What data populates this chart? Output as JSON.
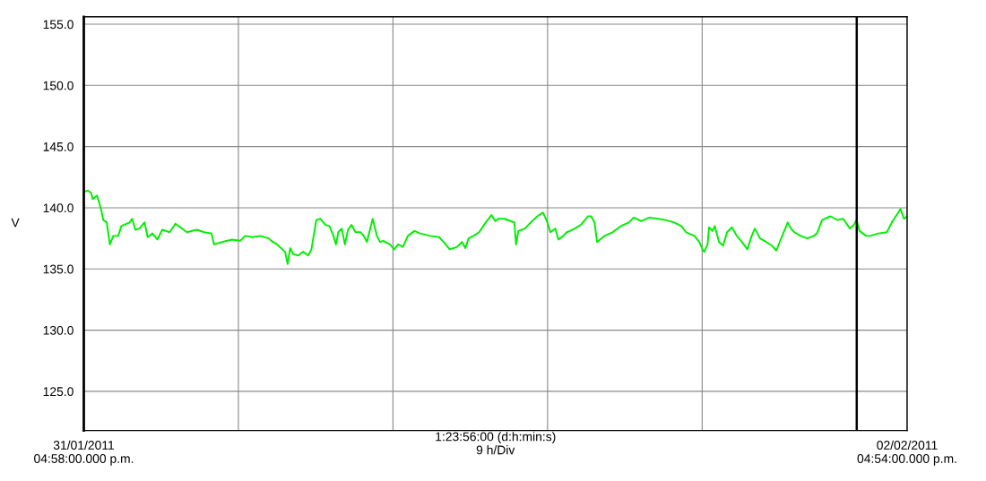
{
  "chart_data": {
    "type": "line",
    "ylabel": "V",
    "xlabel": "1:23:56:00 (d:h:min:s)\n9 h/Div",
    "xlim": [
      "2011-01-31T16:58",
      "2011-02-02T16:54"
    ],
    "ylim": [
      121.8,
      155.6
    ],
    "xticks": [
      {
        "value": "2011-01-31T16:58",
        "label": "31/01/2011\n04:58:00.000 p.m."
      },
      {
        "value": "2011-02-01T01:58",
        "label": null
      },
      {
        "value": "2011-02-01T10:58",
        "label": null
      },
      {
        "value": "2011-02-01T19:58",
        "label": null
      },
      {
        "value": "2011-02-02T04:58",
        "label": null
      },
      {
        "value": "2011-02-02T13:58",
        "label": null
      },
      {
        "value": "2011-02-02T16:54",
        "label": "02/02/2011\n04:54:00.000 p.m."
      }
    ],
    "yticks": [
      {
        "value": 125,
        "label": "125.0"
      },
      {
        "value": 130,
        "label": "130.0"
      },
      {
        "value": 135,
        "label": "135.0"
      },
      {
        "value": 140,
        "label": "140.0"
      },
      {
        "value": 145,
        "label": "145.0"
      },
      {
        "value": 150,
        "label": "150.0"
      },
      {
        "value": 155,
        "label": "155.0"
      }
    ],
    "grid": true,
    "ref_lines": [
      {
        "axis": "x",
        "value": "2011-02-02T13:58",
        "color": "#000000"
      }
    ],
    "series": [
      {
        "color": "#00ee00",
        "x": [
          "2011-01-31T16:58",
          "2011-01-31T17:12",
          "2011-01-31T17:24",
          "2011-01-31T17:29",
          "2011-01-31T17:44",
          "2011-01-31T17:58",
          "2011-01-31T18:06",
          "2011-01-31T18:18",
          "2011-01-31T18:29",
          "2011-01-31T18:41",
          "2011-01-31T18:58",
          "2011-01-31T19:09",
          "2011-01-31T19:38",
          "2011-01-31T19:47",
          "2011-01-31T19:58",
          "2011-01-31T20:12",
          "2011-01-31T20:30",
          "2011-01-31T20:41",
          "2011-01-31T20:58",
          "2011-01-31T21:15",
          "2011-01-31T21:32",
          "2011-01-31T21:58",
          "2011-01-31T22:18",
          "2011-01-31T22:35",
          "2011-01-31T22:58",
          "2011-01-31T23:33",
          "2011-01-31T23:58",
          "2011-02-01T00:24",
          "2011-02-01T00:33",
          "2011-02-01T01:01",
          "2011-02-01T01:35",
          "2011-02-01T02:04",
          "2011-02-01T02:21",
          "2011-02-01T02:47",
          "2011-02-01T03:15",
          "2011-02-01T03:44",
          "2011-02-01T03:53",
          "2011-02-01T04:13",
          "2011-02-01T04:41",
          "2011-02-01T04:50",
          "2011-02-01T04:59",
          "2011-02-01T05:10",
          "2011-02-01T05:27",
          "2011-02-01T05:44",
          "2011-02-01T06:02",
          "2011-02-01T06:13",
          "2011-02-01T06:21",
          "2011-02-01T06:30",
          "2011-02-01T06:44",
          "2011-02-01T07:02",
          "2011-02-01T07:16",
          "2011-02-01T07:30",
          "2011-02-01T07:39",
          "2011-02-01T07:47",
          "2011-02-01T07:59",
          "2011-02-01T08:10",
          "2011-02-01T08:21",
          "2011-02-01T08:33",
          "2011-02-01T08:47",
          "2011-02-01T09:05",
          "2011-02-01T09:16",
          "2011-02-01T09:27",
          "2011-02-01T09:47",
          "2011-02-01T10:02",
          "2011-02-01T10:13",
          "2011-02-01T10:24",
          "2011-02-01T10:47",
          "2011-02-01T11:02",
          "2011-02-01T11:16",
          "2011-02-01T11:33",
          "2011-02-01T11:50",
          "2011-02-01T12:13",
          "2011-02-01T12:33",
          "2011-02-01T13:08",
          "2011-02-01T13:39",
          "2011-02-01T13:59",
          "2011-02-01T14:16",
          "2011-02-01T14:42",
          "2011-02-01T14:59",
          "2011-02-01T15:11",
          "2011-02-01T15:22",
          "2011-02-01T15:39",
          "2011-02-01T15:59",
          "2011-02-01T16:22",
          "2011-02-01T16:42",
          "2011-02-01T16:56",
          "2011-02-01T17:05",
          "2011-02-01T17:27",
          "2011-02-01T17:50",
          "2011-02-01T18:02",
          "2011-02-01T18:08",
          "2011-02-01T18:16",
          "2011-02-01T18:39",
          "2011-02-01T18:59",
          "2011-02-01T19:22",
          "2011-02-01T19:42",
          "2011-02-01T19:56",
          "2011-02-01T20:08",
          "2011-02-01T20:25",
          "2011-02-01T20:36",
          "2011-02-01T20:53",
          "2011-02-01T21:05",
          "2011-02-01T21:16",
          "2011-02-01T21:33",
          "2011-02-01T21:54",
          "2011-02-01T22:19",
          "2011-02-01T22:30",
          "2011-02-01T22:42",
          "2011-02-01T22:51",
          "2011-02-01T23:17",
          "2011-02-01T23:45",
          "2011-02-02T00:14",
          "2011-02-02T00:42",
          "2011-02-02T00:59",
          "2011-02-02T01:25",
          "2011-02-02T01:54",
          "2011-02-02T02:22",
          "2011-02-02T02:51",
          "2011-02-02T03:20",
          "2011-02-02T03:45",
          "2011-02-02T04:02",
          "2011-02-02T04:31",
          "2011-02-02T04:48",
          "2011-02-02T04:59",
          "2011-02-02T05:05",
          "2011-02-02T05:17",
          "2011-02-02T05:22",
          "2011-02-02T05:34",
          "2011-02-02T05:42",
          "2011-02-02T05:57",
          "2011-02-02T06:11",
          "2011-02-02T06:25",
          "2011-02-02T06:42",
          "2011-02-02T06:59",
          "2011-02-02T07:17",
          "2011-02-02T07:36",
          "2011-02-02T07:51",
          "2011-02-02T08:02",
          "2011-02-02T08:20",
          "2011-02-02T08:42",
          "2011-02-02T09:02",
          "2011-02-02T09:17",
          "2011-02-02T09:34",
          "2011-02-02T09:57",
          "2011-02-02T10:08",
          "2011-02-02T10:20",
          "2011-02-02T10:42",
          "2011-02-02T11:05",
          "2011-02-02T11:28",
          "2011-02-02T11:39",
          "2011-02-02T11:57",
          "2011-02-02T12:26",
          "2011-02-02T12:51",
          "2011-02-02T13:11",
          "2011-02-02T13:34",
          "2011-02-02T13:48",
          "2011-02-02T13:57",
          "2011-02-02T14:08",
          "2011-02-02T14:31",
          "2011-02-02T14:45",
          "2011-02-02T15:14",
          "2011-02-02T15:43",
          "2011-02-02T16:03",
          "2011-02-02T16:20",
          "2011-02-02T16:31",
          "2011-02-02T16:43",
          "2011-02-02T16:54"
        ],
        "values": [
          141.3,
          141.4,
          141.2,
          140.7,
          141.0,
          139.9,
          139.0,
          138.8,
          137.0,
          137.7,
          137.7,
          138.5,
          138.8,
          139.1,
          138.2,
          138.3,
          138.8,
          137.6,
          137.9,
          137.4,
          138.2,
          138.0,
          138.7,
          138.4,
          138.0,
          138.2,
          138.0,
          137.9,
          137.0,
          137.2,
          137.4,
          137.3,
          137.7,
          137.6,
          137.7,
          137.5,
          137.3,
          137.0,
          136.4,
          135.4,
          136.7,
          136.2,
          136.1,
          136.4,
          136.1,
          136.6,
          137.7,
          139.0,
          139.1,
          138.6,
          138.5,
          137.7,
          137.0,
          138.0,
          138.3,
          137.0,
          138.2,
          138.6,
          138.0,
          138.0,
          137.7,
          137.2,
          139.1,
          137.7,
          137.2,
          137.3,
          137.0,
          136.6,
          137.0,
          136.8,
          137.7,
          138.1,
          137.9,
          137.7,
          137.6,
          137.1,
          136.6,
          136.8,
          137.2,
          136.7,
          137.5,
          137.7,
          138.0,
          138.8,
          139.4,
          138.9,
          139.1,
          139.1,
          138.9,
          138.8,
          137.0,
          138.1,
          138.3,
          138.8,
          139.3,
          139.6,
          138.9,
          138.0,
          138.3,
          137.4,
          137.7,
          138.0,
          138.1,
          138.3,
          138.6,
          139.3,
          139.3,
          138.8,
          137.2,
          137.7,
          138.0,
          138.5,
          138.8,
          139.2,
          138.9,
          139.2,
          139.1,
          139.0,
          138.8,
          138.5,
          138.0,
          137.7,
          137.2,
          136.6,
          136.4,
          137.0,
          138.4,
          138.1,
          138.5,
          137.2,
          136.9,
          138.0,
          138.4,
          137.7,
          137.2,
          136.6,
          137.7,
          138.3,
          137.5,
          137.2,
          136.9,
          136.5,
          137.5,
          138.8,
          138.3,
          138.0,
          137.7,
          137.5,
          137.7,
          137.9,
          139.0,
          139.3,
          139.0,
          139.1,
          138.3,
          138.6,
          139.0,
          138.1,
          137.7,
          137.7,
          137.9,
          138.0,
          138.9,
          139.5,
          139.9,
          139.1,
          139.3
        ]
      }
    ]
  }
}
